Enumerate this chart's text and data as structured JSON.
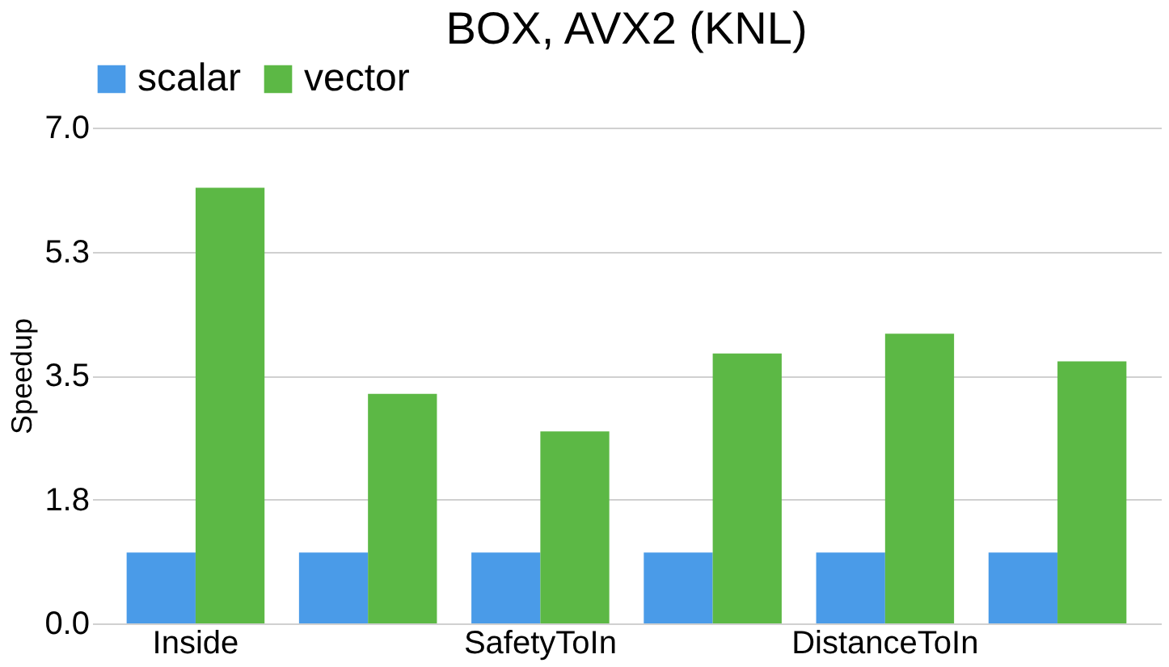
{
  "chart_data": {
    "type": "bar",
    "title": "BOX, AVX2 (KNL)",
    "ylabel": "Speedup",
    "categories": [
      "Inside",
      null,
      "SafetyToIn",
      null,
      "DistanceToIn",
      null
    ],
    "series": [
      {
        "name": "scalar",
        "color": "#4a9be8",
        "values": [
          1.0,
          1.0,
          1.0,
          1.0,
          1.0,
          1.0
        ]
      },
      {
        "name": "vector",
        "color": "#5cb845",
        "values": [
          6.15,
          3.24,
          2.71,
          3.81,
          4.09,
          3.7
        ]
      }
    ],
    "ylim": [
      0,
      7
    ],
    "yticks": [
      {
        "value": 0,
        "label": "0.0"
      },
      {
        "value": 1.75,
        "label": "1.8"
      },
      {
        "value": 3.5,
        "label": "3.5"
      },
      {
        "value": 5.25,
        "label": "5.3"
      },
      {
        "value": 7,
        "label": "7.0"
      }
    ],
    "grid": "y",
    "legend": "top"
  }
}
